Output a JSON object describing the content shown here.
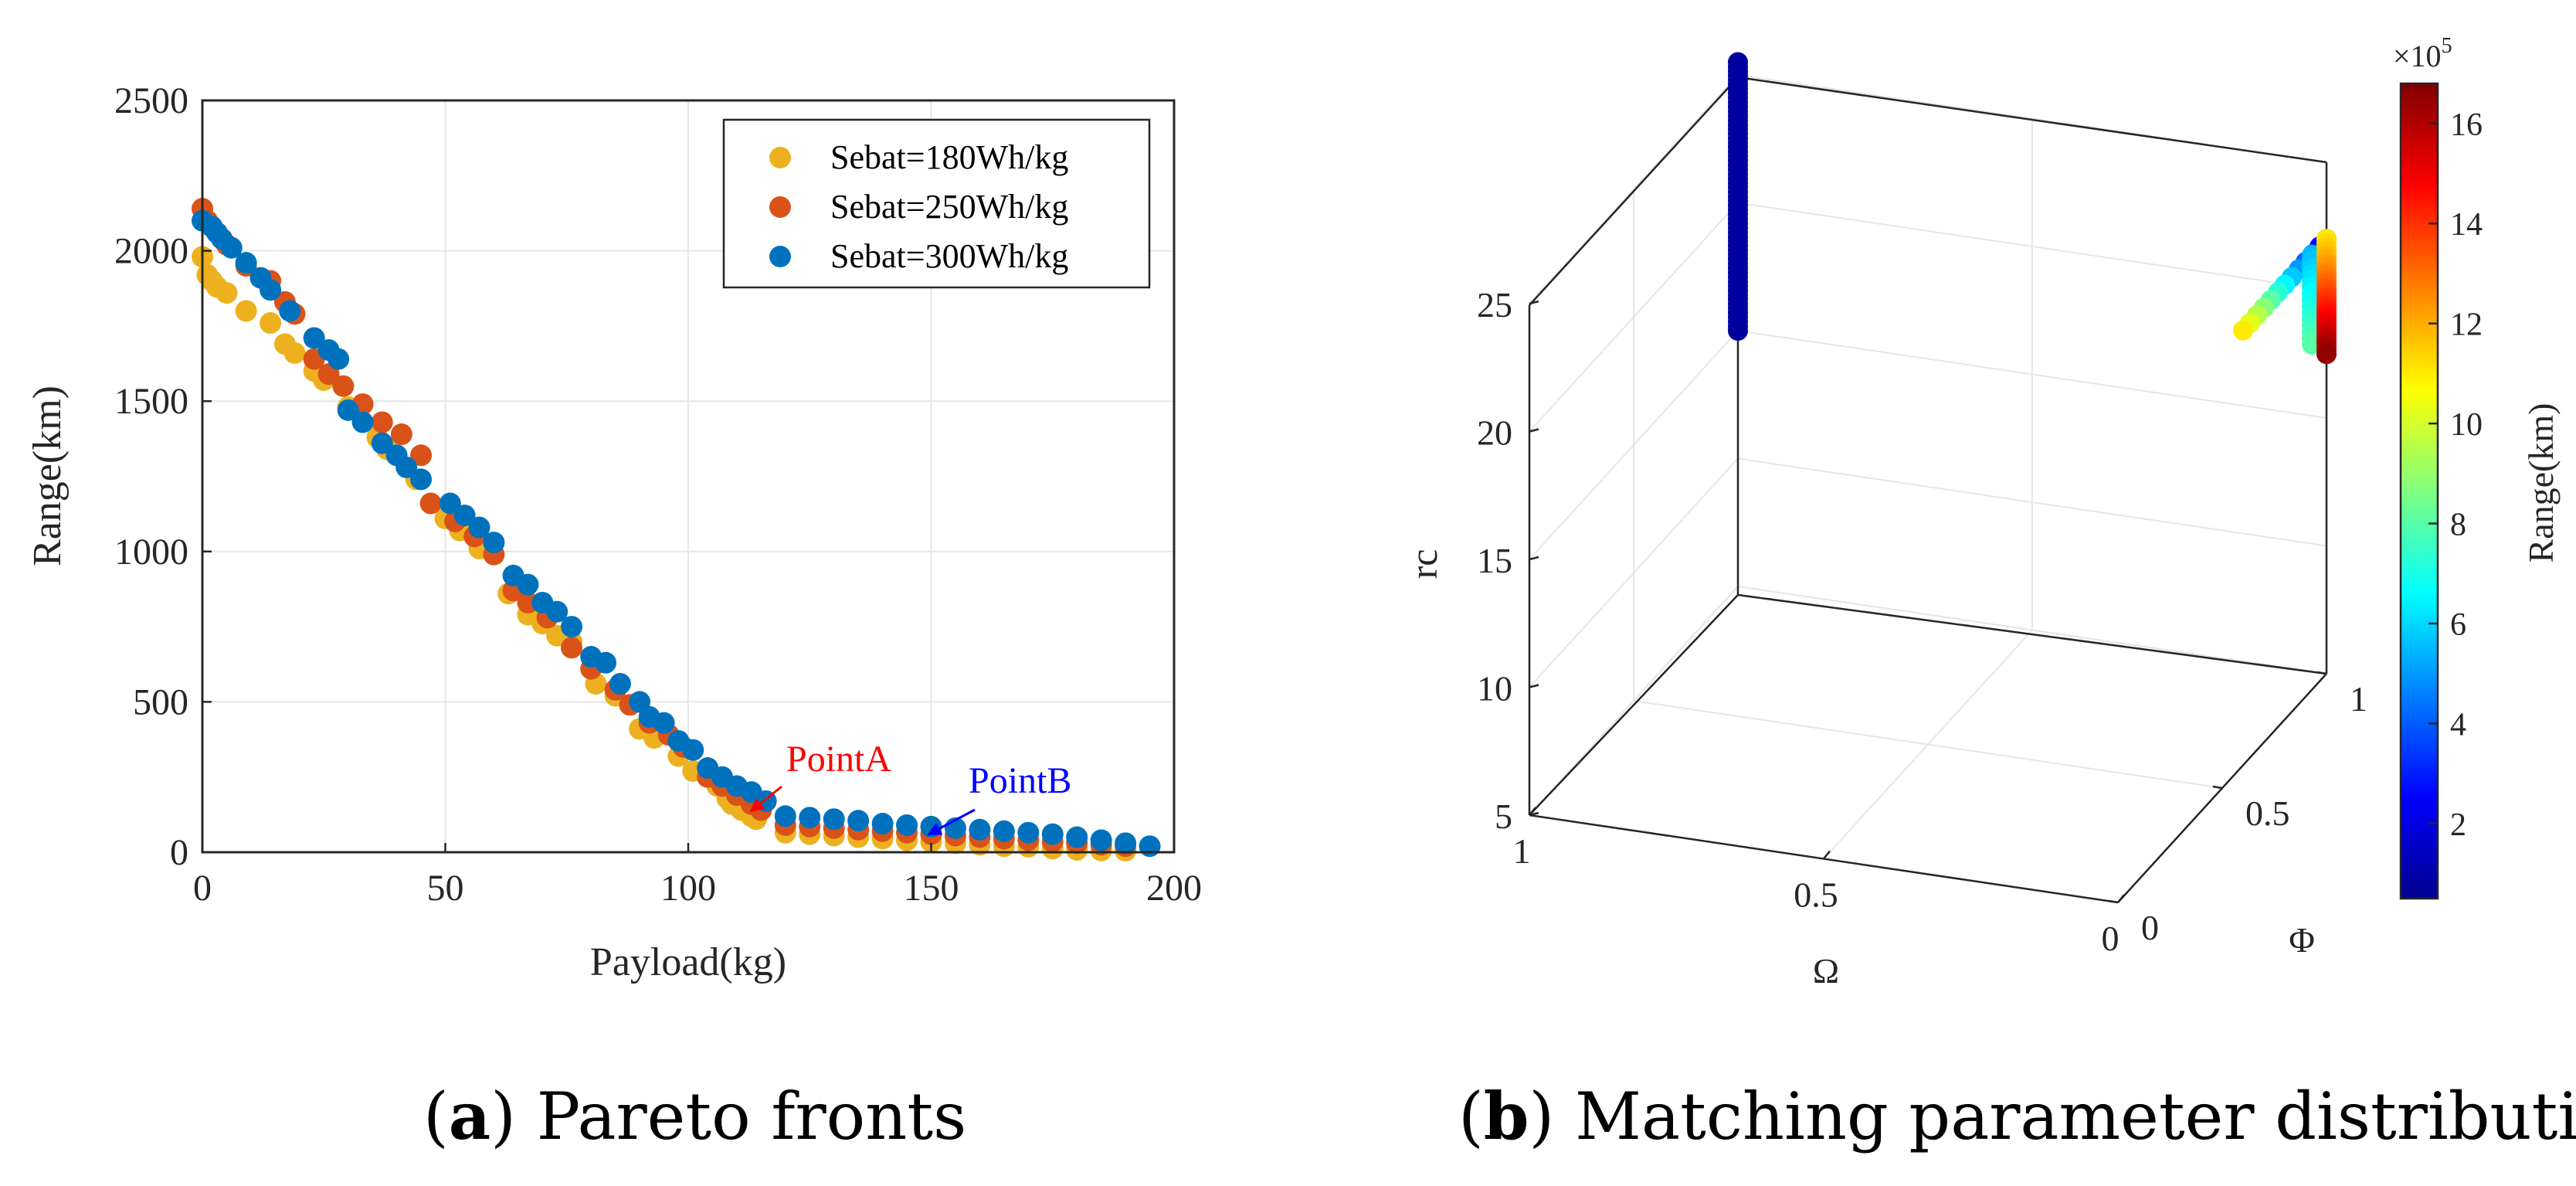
{
  "chart_data": [
    {
      "type": "scatter",
      "panel": "a",
      "xlabel": "Payload(kg)",
      "ylabel": "Range(km)",
      "xlim": [
        0,
        200
      ],
      "ylim": [
        0,
        2500
      ],
      "xticks": [
        "0",
        "50",
        "100",
        "150",
        "200"
      ],
      "yticks": [
        "0",
        "500",
        "1000",
        "1500",
        "2000",
        "2500"
      ],
      "grid": true,
      "legend_position": "top-right",
      "series": [
        {
          "name": "Sebat=180Wh/kg",
          "color": "#EDB120",
          "points": [
            [
              0,
              1980
            ],
            [
              1,
              1920
            ],
            [
              2,
              1900
            ],
            [
              3,
              1880
            ],
            [
              5,
              1860
            ],
            [
              9,
              1800
            ],
            [
              14,
              1760
            ],
            [
              17,
              1690
            ],
            [
              19,
              1660
            ],
            [
              23,
              1600
            ],
            [
              25,
              1570
            ],
            [
              30,
              1480
            ],
            [
              36,
              1380
            ],
            [
              38,
              1340
            ],
            [
              44,
              1240
            ],
            [
              50,
              1110
            ],
            [
              53,
              1070
            ],
            [
              57,
              1010
            ],
            [
              63,
              860
            ],
            [
              67,
              790
            ],
            [
              70,
              760
            ],
            [
              73,
              720
            ],
            [
              76,
              700
            ],
            [
              81,
              560
            ],
            [
              85,
              520
            ],
            [
              90,
              410
            ],
            [
              93,
              380
            ],
            [
              98,
              320
            ],
            [
              101,
              270
            ],
            [
              106,
              220
            ],
            [
              108,
              180
            ],
            [
              109,
              160
            ],
            [
              111,
              140
            ],
            [
              113,
              120
            ],
            [
              114,
              110
            ],
            [
              120,
              65
            ],
            [
              125,
              60
            ],
            [
              130,
              55
            ],
            [
              135,
              50
            ],
            [
              140,
              45
            ],
            [
              145,
              40
            ],
            [
              150,
              35
            ],
            [
              155,
              30
            ],
            [
              160,
              25
            ],
            [
              165,
              20
            ],
            [
              170,
              18
            ],
            [
              175,
              12
            ],
            [
              180,
              8
            ],
            [
              185,
              6
            ],
            [
              190,
              5
            ]
          ]
        },
        {
          "name": "Sebat=250Wh/kg",
          "color": "#D95319",
          "points": [
            [
              0,
              2140
            ],
            [
              1,
              2100
            ],
            [
              2,
              2080
            ],
            [
              3,
              2060
            ],
            [
              5,
              2020
            ],
            [
              9,
              1950
            ],
            [
              14,
              1900
            ],
            [
              17,
              1830
            ],
            [
              19,
              1790
            ],
            [
              23,
              1640
            ],
            [
              26,
              1590
            ],
            [
              29,
              1550
            ],
            [
              33,
              1490
            ],
            [
              37,
              1430
            ],
            [
              41,
              1390
            ],
            [
              45,
              1320
            ],
            [
              47,
              1160
            ],
            [
              52,
              1100
            ],
            [
              56,
              1050
            ],
            [
              60,
              990
            ],
            [
              64,
              870
            ],
            [
              67,
              830
            ],
            [
              71,
              780
            ],
            [
              76,
              680
            ],
            [
              80,
              610
            ],
            [
              85,
              540
            ],
            [
              88,
              490
            ],
            [
              92,
              430
            ],
            [
              96,
              390
            ],
            [
              99,
              350
            ],
            [
              104,
              250
            ],
            [
              107,
              220
            ],
            [
              110,
              190
            ],
            [
              113,
              160
            ],
            [
              115,
              140
            ],
            [
              120,
              90
            ],
            [
              125,
              85
            ],
            [
              130,
              80
            ],
            [
              135,
              75
            ],
            [
              140,
              70
            ],
            [
              145,
              65
            ],
            [
              150,
              60
            ],
            [
              155,
              55
            ],
            [
              160,
              50
            ],
            [
              165,
              45
            ],
            [
              170,
              40
            ],
            [
              175,
              35
            ],
            [
              180,
              30
            ],
            [
              185,
              25
            ],
            [
              190,
              20
            ]
          ]
        },
        {
          "name": "Sebat=300Wh/kg",
          "color": "#0072BD",
          "points": [
            [
              0,
              2100
            ],
            [
              2,
              2080
            ],
            [
              3,
              2060
            ],
            [
              4,
              2040
            ],
            [
              6,
              2010
            ],
            [
              9,
              1960
            ],
            [
              12,
              1910
            ],
            [
              14,
              1870
            ],
            [
              18,
              1800
            ],
            [
              23,
              1710
            ],
            [
              26,
              1670
            ],
            [
              28,
              1640
            ],
            [
              30,
              1470
            ],
            [
              33,
              1430
            ],
            [
              37,
              1360
            ],
            [
              40,
              1320
            ],
            [
              42,
              1280
            ],
            [
              45,
              1240
            ],
            [
              51,
              1160
            ],
            [
              54,
              1120
            ],
            [
              57,
              1080
            ],
            [
              60,
              1030
            ],
            [
              64,
              920
            ],
            [
              67,
              890
            ],
            [
              70,
              830
            ],
            [
              73,
              800
            ],
            [
              76,
              750
            ],
            [
              80,
              650
            ],
            [
              83,
              630
            ],
            [
              86,
              560
            ],
            [
              90,
              500
            ],
            [
              92,
              450
            ],
            [
              95,
              430
            ],
            [
              98,
              370
            ],
            [
              101,
              340
            ],
            [
              104,
              280
            ],
            [
              107,
              250
            ],
            [
              110,
              220
            ],
            [
              113,
              200
            ],
            [
              116,
              170
            ],
            [
              120,
              120
            ],
            [
              125,
              115
            ],
            [
              130,
              110
            ],
            [
              135,
              105
            ],
            [
              140,
              95
            ],
            [
              145,
              90
            ],
            [
              150,
              85
            ],
            [
              155,
              80
            ],
            [
              160,
              75
            ],
            [
              165,
              70
            ],
            [
              170,
              65
            ],
            [
              175,
              60
            ],
            [
              180,
              50
            ],
            [
              185,
              40
            ],
            [
              190,
              30
            ],
            [
              195,
              20
            ]
          ]
        }
      ],
      "annotations": [
        {
          "text": "PointA",
          "color": "#FF0000",
          "at": [
            114,
            120
          ]
        },
        {
          "text": "PointB",
          "color": "#0000FF",
          "at": [
            150,
            60
          ]
        }
      ]
    },
    {
      "type": "scatter3d",
      "panel": "b",
      "xlabel": "Ω",
      "ylabel": "Φ",
      "zlabel": "rc",
      "xlim": [
        0,
        1
      ],
      "ylim": [
        0,
        1
      ],
      "zlim": [
        5,
        25
      ],
      "xticks": [
        "1",
        "0.5",
        "0"
      ],
      "yticks": [
        "0",
        "0.5",
        "1"
      ],
      "zticks": [
        "5",
        "10",
        "15",
        "20",
        "25"
      ],
      "colorbar": {
        "label": "Range(km)",
        "exponent": "×10",
        "exponent_power": "5",
        "min": 0.5,
        "max": 16.8,
        "ticks": [
          "2",
          "4",
          "6",
          "8",
          "10",
          "12",
          "14",
          "16"
        ],
        "colormap": "jet"
      },
      "clusters": [
        {
          "name": "omega-one-column",
          "omega": 1,
          "phi": 1,
          "rc_range": [
            15,
            25.5
          ],
          "value": 1.0
        },
        {
          "name": "omega-zero-column",
          "omega": 0,
          "phi": 1,
          "rc_range": [
            17.5,
            22
          ],
          "value_range": [
            11,
            16.5
          ]
        },
        {
          "name": "phi-arm",
          "omega": 0,
          "phi_range": [
            1,
            0.6
          ],
          "rc": 22,
          "value_range": [
            2,
            11
          ]
        }
      ]
    }
  ],
  "captions": {
    "a_label": "a",
    "a_text": "Pareto fronts",
    "b_label": "b",
    "b_text": "Matching parameter distribution"
  }
}
